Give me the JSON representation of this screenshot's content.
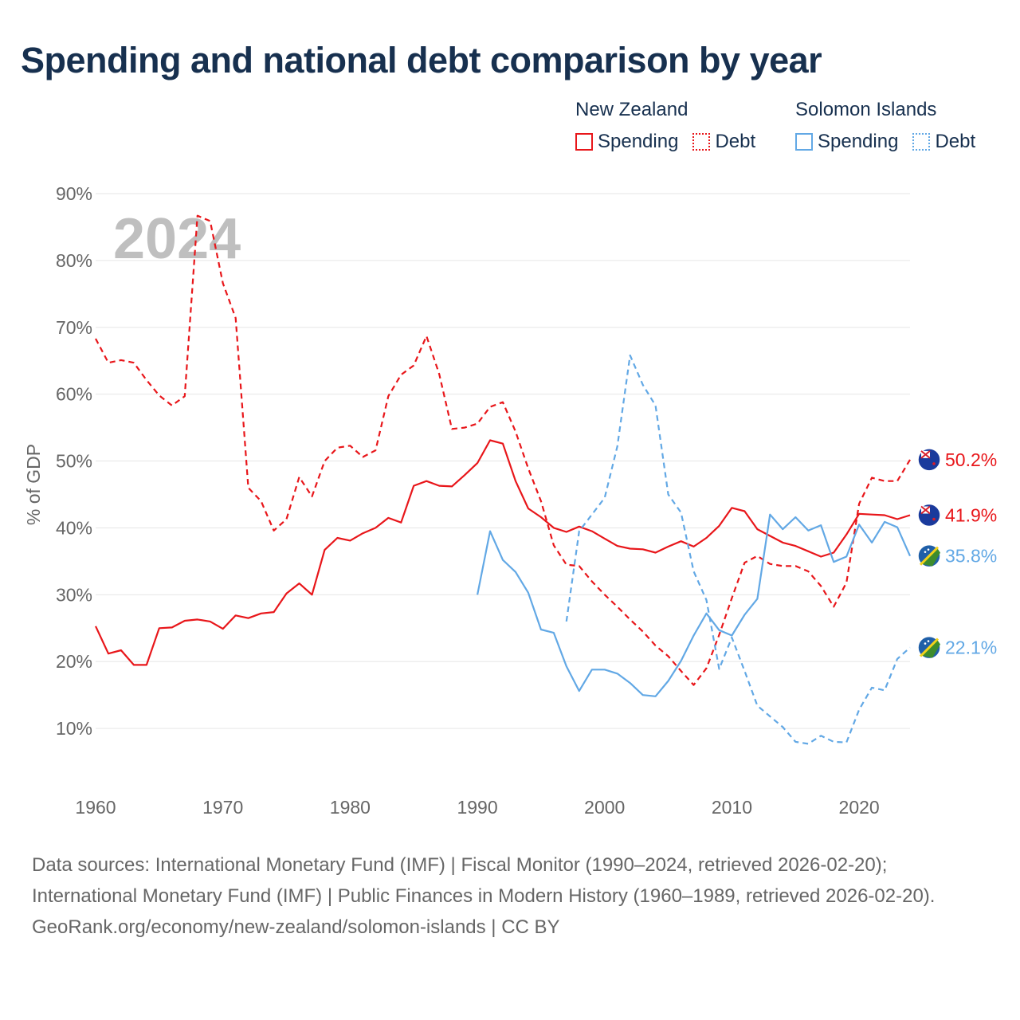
{
  "title": "Spending and national debt comparison by year",
  "legend": {
    "nz": {
      "country": "New Zealand",
      "spending": "Spending",
      "debt": "Debt"
    },
    "si": {
      "country": "Solomon Islands",
      "spending": "Spending",
      "debt": "Debt"
    }
  },
  "colors": {
    "nz": "#e8161a",
    "si": "#62a8e5",
    "grid": "#e6e6e6",
    "axis_text": "#666666",
    "watermark": "#bfbfbf"
  },
  "footer": {
    "sources": "Data sources: International Monetary Fund (IMF) | Fiscal Monitor (1990–2024, retrieved 2026-02-20); International Monetary Fund (IMF) | Public Finances in Modern History (1960–1989, retrieved 2026-02-20).",
    "credit": "GeoRank.org/economy/new-zealand/solomon-islands | CC BY"
  },
  "chart_data": {
    "type": "line",
    "title": "Spending and national debt comparison by year",
    "watermark_year": "2024",
    "ylabel": "% of GDP",
    "xlabel": "",
    "xlim": [
      1960,
      2024
    ],
    "ylim": [
      0,
      90
    ],
    "xticks": [
      1960,
      1970,
      1980,
      1990,
      2000,
      2010,
      2020
    ],
    "yticks": [
      10,
      20,
      30,
      40,
      50,
      60,
      70,
      80,
      90
    ],
    "ytick_labels": [
      "10%",
      "20%",
      "30%",
      "40%",
      "50%",
      "60%",
      "70%",
      "80%",
      "90%"
    ],
    "grid": true,
    "legend_position": "top-right",
    "series": [
      {
        "name": "New Zealand Spending",
        "country": "nz",
        "style": "solid",
        "end_label": "41.9%",
        "start": 1960,
        "values": [
          25.3,
          21.2,
          21.7,
          19.5,
          19.5,
          25.0,
          25.1,
          26.1,
          26.3,
          26.0,
          24.9,
          26.9,
          26.5,
          27.2,
          27.4,
          30.2,
          31.7,
          30.0,
          36.7,
          38.5,
          38.1,
          39.2,
          40.0,
          41.5,
          40.8,
          46.3,
          47.0,
          46.3,
          46.2,
          47.9,
          49.7,
          53.1,
          52.6,
          47.0,
          42.9,
          41.6,
          40.0,
          39.4,
          40.2,
          39.5,
          38.4,
          37.3,
          36.9,
          36.8,
          36.3,
          37.2,
          38.0,
          37.2,
          38.5,
          40.3,
          43.0,
          42.5,
          39.8,
          38.8,
          37.8,
          37.3,
          36.5,
          35.7,
          36.3,
          39.0,
          42.1,
          42.0,
          41.9,
          41.3,
          41.9
        ]
      },
      {
        "name": "New Zealand Debt",
        "country": "nz",
        "style": "dashed",
        "end_label": "50.2%",
        "start": 1960,
        "values": [
          68.3,
          64.7,
          65.1,
          64.7,
          62.1,
          59.8,
          58.3,
          59.7,
          86.7,
          85.9,
          76.6,
          71.4,
          46.0,
          44.0,
          39.6,
          41.3,
          47.6,
          44.7,
          50.0,
          52.0,
          52.3,
          50.6,
          51.6,
          59.7,
          62.9,
          64.3,
          68.7,
          63.0,
          54.8,
          55.0,
          55.6,
          58.1,
          58.8,
          54.4,
          48.9,
          44.0,
          37.4,
          34.5,
          34.3,
          32.0,
          30.0,
          28.2,
          26.3,
          24.5,
          22.4,
          20.8,
          18.6,
          16.5,
          19.0,
          24.0,
          29.5,
          34.8,
          35.8,
          34.6,
          34.3,
          34.3,
          33.5,
          31.3,
          28.2,
          31.8,
          43.6,
          47.5,
          47.0,
          47.0,
          50.2
        ]
      },
      {
        "name": "Solomon Islands Spending",
        "country": "si",
        "style": "solid",
        "end_label": "35.8%",
        "start": 1990,
        "values": [
          30.0,
          39.5,
          35.2,
          33.4,
          30.3,
          24.8,
          24.3,
          19.3,
          15.6,
          18.8,
          18.8,
          18.2,
          16.8,
          15.0,
          14.8,
          17.1,
          20.1,
          23.9,
          27.2,
          24.7,
          23.9,
          27.0,
          29.4,
          42.0,
          39.8,
          41.6,
          39.6,
          40.4,
          34.9,
          35.7,
          40.5,
          37.8,
          40.9,
          40.1,
          35.8
        ]
      },
      {
        "name": "Solomon Islands Debt",
        "country": "si",
        "style": "dashed",
        "end_label": "22.1%",
        "start": 1997,
        "values": [
          26.0,
          39.5,
          42.0,
          44.5,
          52.2,
          65.8,
          61.4,
          58.3,
          45.0,
          42.3,
          33.5,
          29.2,
          18.9,
          23.6,
          18.6,
          13.4,
          11.8,
          10.2,
          8.0,
          7.7,
          8.9,
          8.0,
          7.9,
          12.8,
          16.1,
          15.7,
          20.4,
          22.1
        ]
      }
    ]
  }
}
